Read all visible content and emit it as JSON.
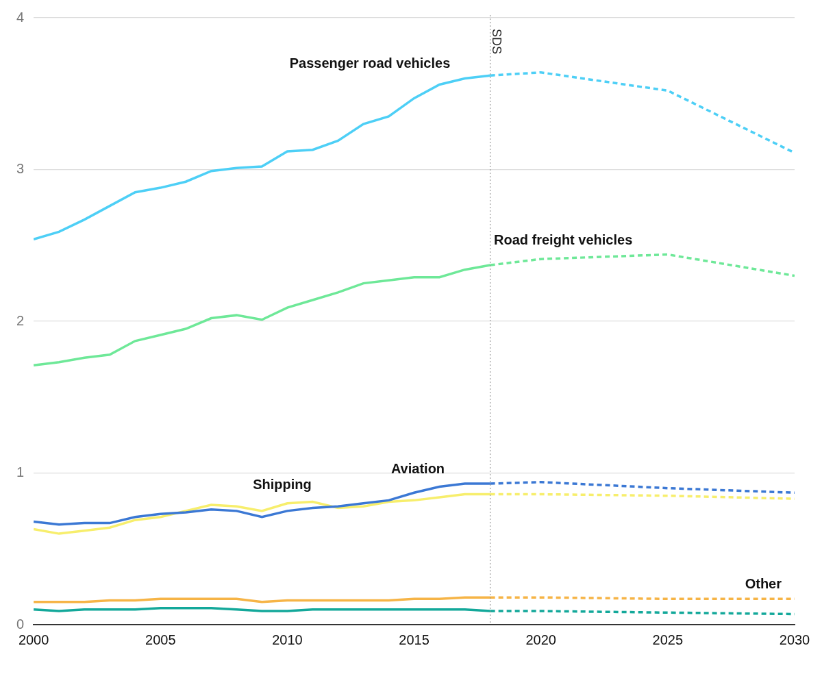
{
  "chart_data": {
    "type": "line",
    "x": [
      2000,
      2001,
      2002,
      2003,
      2004,
      2005,
      2006,
      2007,
      2008,
      2009,
      2010,
      2011,
      2012,
      2013,
      2014,
      2015,
      2016,
      2017,
      2018,
      2020,
      2025,
      2030
    ],
    "series": [
      {
        "name": "Passenger road vehicles",
        "color": "#4dcff6",
        "values": [
          2.54,
          2.59,
          2.67,
          2.76,
          2.85,
          2.88,
          2.92,
          2.99,
          3.01,
          3.02,
          3.12,
          3.13,
          3.19,
          3.3,
          3.35,
          3.47,
          3.56,
          3.6,
          3.62,
          3.64,
          3.52,
          3.11
        ]
      },
      {
        "name": "Road freight vehicles",
        "color": "#6ee898",
        "values": [
          1.71,
          1.73,
          1.76,
          1.78,
          1.87,
          1.91,
          1.95,
          2.02,
          2.04,
          2.01,
          2.09,
          2.14,
          2.19,
          2.25,
          2.27,
          2.29,
          2.29,
          2.34,
          2.37,
          2.41,
          2.44,
          2.3
        ]
      },
      {
        "name": "Aviation",
        "color": "#3b78d4",
        "values": [
          0.68,
          0.66,
          0.67,
          0.67,
          0.71,
          0.73,
          0.74,
          0.76,
          0.75,
          0.71,
          0.75,
          0.77,
          0.78,
          0.8,
          0.82,
          0.87,
          0.91,
          0.93,
          0.93,
          0.94,
          0.9,
          0.87
        ]
      },
      {
        "name": "Shipping",
        "color": "#f7ee6c",
        "values": [
          0.63,
          0.6,
          0.62,
          0.64,
          0.69,
          0.71,
          0.75,
          0.79,
          0.78,
          0.75,
          0.8,
          0.81,
          0.77,
          0.78,
          0.81,
          0.82,
          0.84,
          0.86,
          0.86,
          0.86,
          0.85,
          0.83
        ]
      },
      {
        "name": "Other",
        "color": "#f6b446",
        "values": [
          0.15,
          0.15,
          0.15,
          0.16,
          0.16,
          0.17,
          0.17,
          0.17,
          0.17,
          0.15,
          0.16,
          0.16,
          0.16,
          0.16,
          0.16,
          0.17,
          0.17,
          0.18,
          0.18,
          0.18,
          0.17,
          0.17
        ]
      },
      {
        "color": "#13a89a",
        "values": [
          0.1,
          0.09,
          0.1,
          0.1,
          0.1,
          0.11,
          0.11,
          0.11,
          0.1,
          0.09,
          0.09,
          0.1,
          0.1,
          0.1,
          0.1,
          0.1,
          0.1,
          0.1,
          0.09,
          0.09,
          0.08,
          0.07
        ]
      }
    ],
    "xlim": [
      2000,
      2030
    ],
    "xticks": [
      2000,
      2005,
      2010,
      2015,
      2020,
      2025,
      2030
    ],
    "ylim": [
      0,
      4
    ],
    "yticks": [
      0,
      1,
      2,
      3,
      4
    ],
    "grid": true,
    "annotations": [
      {
        "text": "SDS",
        "x": 2018
      }
    ]
  }
}
